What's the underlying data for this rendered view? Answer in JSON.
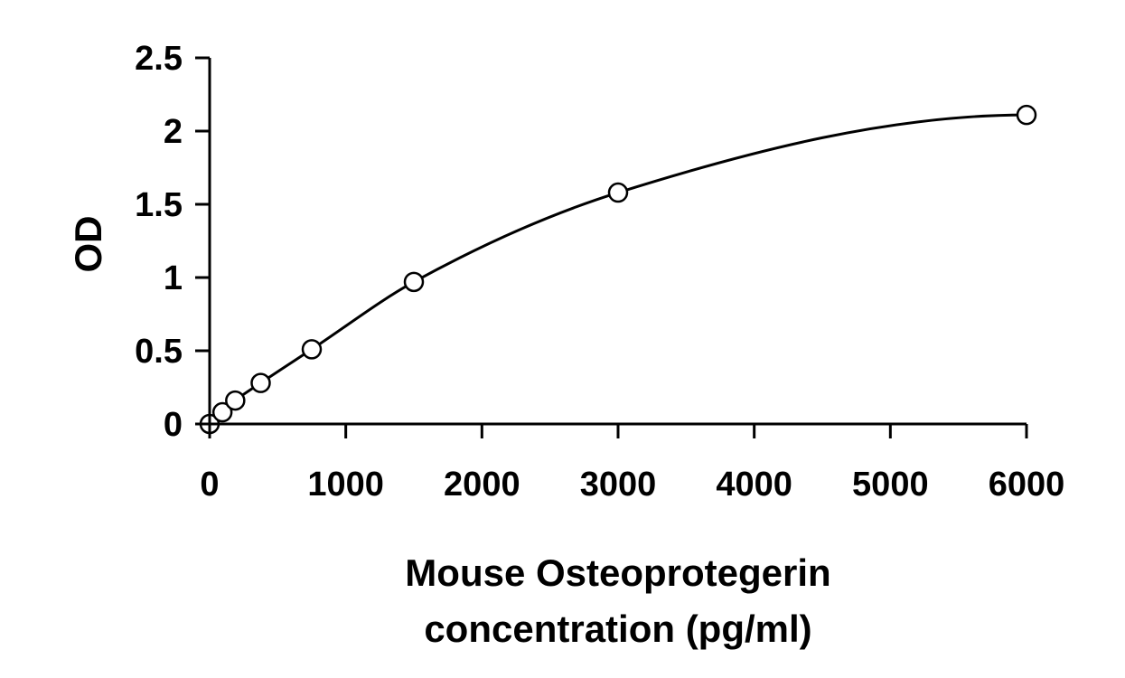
{
  "chart_data": {
    "type": "scatter",
    "title": "",
    "xlabel_lines": [
      "Mouse Osteoprotegerin",
      "concentration (pg/ml)"
    ],
    "ylabel": "OD",
    "xlim": [
      0,
      6000
    ],
    "ylim": [
      0,
      2.5
    ],
    "x_ticks": [
      0,
      1000,
      2000,
      3000,
      4000,
      5000,
      6000
    ],
    "x_tick_labels": [
      "0",
      "1000",
      "2000",
      "3000",
      "4000",
      "5000",
      "6000"
    ],
    "y_ticks": [
      0,
      0.5,
      1,
      1.5,
      2,
      2.5
    ],
    "y_tick_labels": [
      "0",
      "0.5",
      "1",
      "1.5",
      "2",
      "2.5"
    ],
    "grid": false,
    "legend": "none",
    "series": [
      {
        "marker": "open-circle",
        "fit": "smooth curve",
        "x": [
          0,
          94,
          188,
          375,
          750,
          1500,
          3000,
          6000
        ],
        "y": [
          0.0,
          0.08,
          0.16,
          0.28,
          0.51,
          0.97,
          1.58,
          2.11
        ]
      }
    ],
    "colors": {
      "line": "#000000",
      "marker_fill": "#ffffff",
      "background": "#ffffff"
    }
  }
}
